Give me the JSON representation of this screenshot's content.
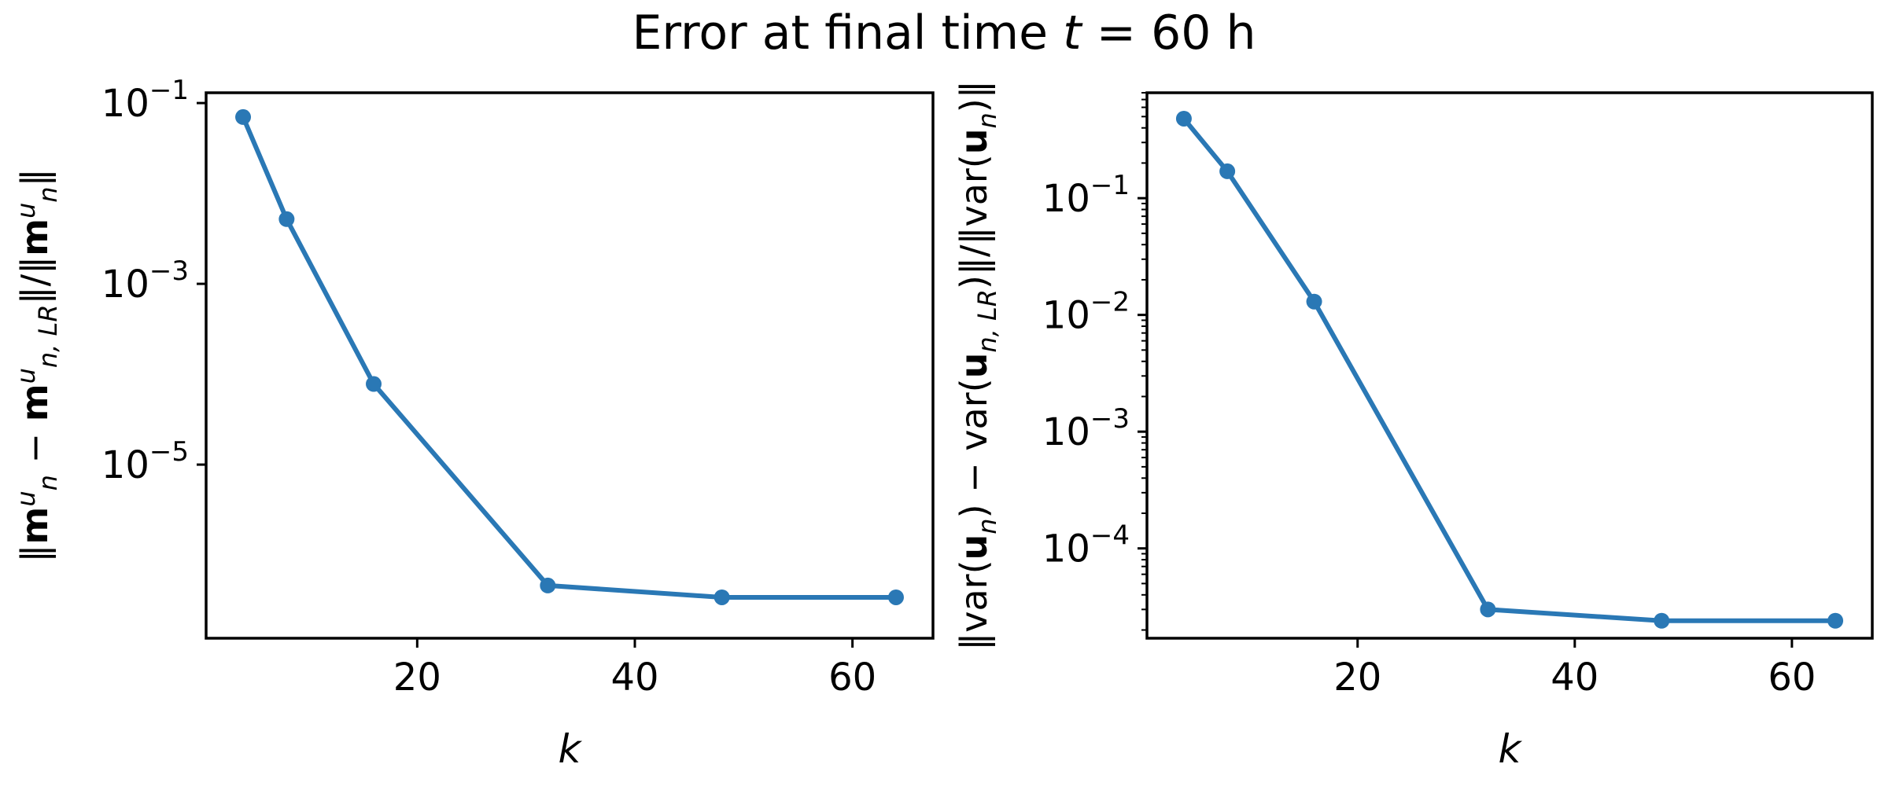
{
  "suptitle": {
    "lead": "Error at final time ",
    "var": "t",
    "rest": " = 60 h"
  },
  "chart_data": [
    {
      "type": "line",
      "log_y": true,
      "xlabel": "k",
      "ylabel": "‖m_n^u − m_{n,LR}^u‖/‖m_n^u‖",
      "ylabel_parts": [
        {
          "t": "‖"
        },
        {
          "t": "m",
          "b": true
        },
        {
          "t": "u",
          "sup": true,
          "i": true
        },
        {
          "t": "n",
          "sub": true,
          "i": true
        },
        {
          "t": " − "
        },
        {
          "t": "m",
          "b": true
        },
        {
          "t": "u",
          "sup": true,
          "i": true
        },
        {
          "t": "n, LR",
          "sub": true,
          "i": true
        },
        {
          "t": "‖/‖"
        },
        {
          "t": "m",
          "b": true
        },
        {
          "t": "u",
          "sup": true,
          "i": true
        },
        {
          "t": "n",
          "sub": true,
          "i": true
        },
        {
          "t": "‖"
        }
      ],
      "xlim": [
        0.6,
        67.4
      ],
      "ylim": [
        1.2e-07,
        0.13
      ],
      "xticks": [
        20,
        40,
        60
      ],
      "yticks": [
        0.1,
        0.001,
        1e-05
      ],
      "ytick_labels": [
        {
          "base": "10",
          "exp": "−1"
        },
        {
          "base": "10",
          "exp": "−3"
        },
        {
          "base": "10",
          "exp": "−5"
        }
      ],
      "minor_ticks": false,
      "grid": false,
      "color": "#2a78b5",
      "series": [
        {
          "x": [
            4,
            8,
            16,
            32,
            48,
            64
          ],
          "y": [
            0.07,
            0.0052,
            7.8e-05,
            4.6e-07,
            3.4e-07,
            3.4e-07
          ]
        }
      ]
    },
    {
      "type": "line",
      "log_y": true,
      "xlabel": "k",
      "ylabel": "‖var(u_n) − var(u_{n,LR})‖/‖var(u_n)‖",
      "ylabel_parts": [
        {
          "t": "‖var("
        },
        {
          "t": "u",
          "b": true
        },
        {
          "t": "n",
          "sub": true,
          "i": true
        },
        {
          "t": ") − var("
        },
        {
          "t": "u",
          "b": true
        },
        {
          "t": "n, LR",
          "sub": true,
          "i": true
        },
        {
          "t": ")‖/‖var("
        },
        {
          "t": "u",
          "b": true
        },
        {
          "t": "n",
          "sub": true,
          "i": true
        },
        {
          "t": ")‖"
        }
      ],
      "xlim": [
        0.6,
        67.4
      ],
      "ylim": [
        1.7e-05,
        0.8
      ],
      "xticks": [
        20,
        40,
        60
      ],
      "yticks": [
        0.1,
        0.01,
        0.001,
        0.0001
      ],
      "ytick_labels": [
        {
          "base": "10",
          "exp": "−1"
        },
        {
          "base": "10",
          "exp": "−2"
        },
        {
          "base": "10",
          "exp": "−3"
        },
        {
          "base": "10",
          "exp": "−4"
        }
      ],
      "minor_ticks": true,
      "grid": false,
      "color": "#2a78b5",
      "series": [
        {
          "x": [
            4,
            8,
            16,
            32,
            48,
            64
          ],
          "y": [
            0.48,
            0.17,
            0.013,
            3e-05,
            2.4e-05,
            2.4e-05
          ]
        }
      ]
    }
  ]
}
